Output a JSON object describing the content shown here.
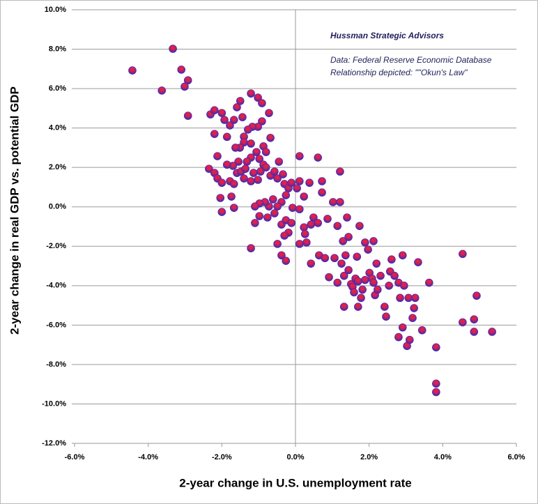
{
  "chart_data": {
    "type": "scatter",
    "x_label": "2-year change in U.S. unemployment rate",
    "y_label": "2-year change in real GDP vs. potential GDP",
    "annotations": [
      "Hussman Strategic Advisors",
      "Data: Federal Reserve Economic Database",
      "Relationship depicted: \"\"Okun's Law\""
    ],
    "color": "#3b2ab8",
    "highlight_color": "#e0204a",
    "grid": true,
    "xlim": [
      -6,
      6
    ],
    "ylim": [
      -12,
      10
    ],
    "xticks": [
      {
        "value": -6,
        "label": "-6.0%"
      },
      {
        "value": -4,
        "label": "-4.0%"
      },
      {
        "value": -2,
        "label": "-2.0%"
      },
      {
        "value": 0,
        "label": "0.0%"
      },
      {
        "value": 2,
        "label": "2.0%"
      },
      {
        "value": 4,
        "label": "4.0%"
      },
      {
        "value": 6,
        "label": "6.0%"
      }
    ],
    "yticks": [
      {
        "value": 10,
        "label": "10.0%"
      },
      {
        "value": 8,
        "label": "8.0%"
      },
      {
        "value": 6,
        "label": "6.0%"
      },
      {
        "value": 4,
        "label": "4.0%"
      },
      {
        "value": 2,
        "label": "2.0%"
      },
      {
        "value": 0,
        "label": "0.0%"
      },
      {
        "value": -2,
        "label": "-2.0%"
      },
      {
        "value": -4,
        "label": "-4.0%"
      },
      {
        "value": -6,
        "label": "-6.0%"
      },
      {
        "value": -8,
        "label": "-8.0%"
      },
      {
        "value": -10,
        "label": "-10.0%"
      },
      {
        "value": -12,
        "label": "-12.0%"
      }
    ],
    "x": [
      -4.43,
      -3.33,
      -3.63,
      -3.1,
      -3.01,
      -2.92,
      -2.92,
      -2.31,
      -2.2,
      -2.2,
      -2.0,
      -1.93,
      -1.86,
      -1.78,
      -1.67,
      -1.59,
      -1.5,
      -1.44,
      -1.21,
      -1.02,
      -0.91,
      -0.72,
      -0.91,
      -1.02,
      -1.17,
      -1.29,
      -1.4,
      -0.68,
      -0.87,
      -0.8,
      -0.45,
      -1.4,
      -1.51,
      -1.63,
      -1.21,
      -1.06,
      -0.98,
      -0.87,
      -1.21,
      -1.32,
      -1.55,
      -1.7,
      -1.86,
      -2.12,
      -2.35,
      -2.2,
      -2.12,
      -2.0,
      -2.04,
      -2.0,
      -1.74,
      -1.67,
      -1.78,
      -1.67,
      -1.59,
      -1.48,
      -1.4,
      -1.36,
      -1.21,
      -1.14,
      -1.02,
      -0.95,
      -0.8,
      -0.68,
      -0.57,
      -0.49,
      -0.34,
      -0.3,
      -0.19,
      -0.11,
      -0.26,
      -0.38,
      -0.49,
      -0.61,
      -0.72,
      -0.83,
      -0.98,
      -1.1,
      -1.1,
      -0.98,
      -0.76,
      -0.57,
      -0.38,
      -0.26,
      -0.11,
      -0.19,
      -0.3,
      -0.49,
      -1.21,
      -0.38,
      -0.26,
      -0.08,
      0.04,
      0.11,
      0.11,
      0.11,
      0.23,
      0.23,
      0.26,
      0.3,
      0.11,
      0.42,
      0.38,
      0.42,
      0.49,
      0.61,
      0.61,
      0.64,
      0.72,
      0.72,
      0.8,
      0.87,
      0.91,
      1.02,
      1.06,
      1.14,
      1.14,
      1.21,
      1.21,
      1.25,
      1.29,
      1.32,
      1.32,
      1.36,
      1.4,
      1.44,
      1.44,
      1.51,
      1.55,
      1.59,
      1.63,
      1.67,
      1.7,
      1.7,
      1.74,
      1.78,
      1.82,
      1.89,
      1.89,
      1.97,
      2.01,
      2.08,
      2.12,
      2.12,
      2.16,
      2.2,
      2.23,
      2.31,
      2.42,
      2.46,
      2.54,
      2.57,
      2.61,
      2.69,
      2.8,
      2.8,
      2.84,
      2.91,
      2.91,
      2.95,
      3.03,
      3.07,
      3.1,
      3.18,
      3.22,
      3.25,
      3.33,
      3.44,
      3.63,
      3.82,
      3.82,
      3.82,
      4.54,
      4.54,
      4.85,
      4.85,
      4.92,
      5.34
    ],
    "values": [
      6.92,
      8.02,
      5.9,
      6.96,
      6.1,
      6.42,
      4.62,
      4.69,
      4.9,
      3.7,
      4.76,
      4.41,
      3.55,
      4.13,
      4.41,
      5.05,
      5.37,
      4.55,
      5.75,
      5.54,
      5.26,
      4.76,
      4.34,
      4.06,
      4.06,
      3.92,
      3.56,
      3.5,
      3.07,
      2.78,
      2.29,
      3.27,
      3.0,
      3.0,
      3.21,
      2.78,
      2.43,
      2.14,
      2.5,
      2.29,
      2.29,
      2.08,
      2.14,
      2.57,
      1.93,
      1.72,
      1.44,
      1.22,
      0.45,
      -0.26,
      0.52,
      -0.05,
      1.3,
      1.16,
      1.72,
      1.79,
      1.44,
      1.93,
      1.3,
      1.72,
      1.37,
      1.79,
      2.0,
      1.58,
      1.79,
      1.44,
      1.65,
      1.16,
      0.94,
      1.22,
      0.59,
      0.24,
      0.02,
      0.38,
      0.02,
      0.24,
      0.17,
      0.02,
      -0.82,
      -0.47,
      -0.54,
      -0.33,
      -0.9,
      -0.68,
      -0.82,
      -1.31,
      -1.46,
      -1.88,
      -2.1,
      -2.46,
      -2.74,
      -0.05,
      0.94,
      1.3,
      2.57,
      -0.12,
      0.52,
      -1.04,
      -1.38,
      -1.81,
      -1.88,
      -0.9,
      1.22,
      -2.88,
      -0.54,
      2.5,
      -0.82,
      -2.46,
      1.3,
      0.73,
      -2.6,
      -0.61,
      -3.57,
      0.24,
      -2.6,
      -0.97,
      -3.85,
      1.79,
      0.24,
      -2.88,
      -1.74,
      -3.5,
      -5.07,
      -2.46,
      -0.54,
      -3.21,
      -1.53,
      -3.92,
      -4.06,
      -4.34,
      -3.64,
      -2.53,
      -3.78,
      -5.07,
      -0.97,
      -4.62,
      -4.2,
      -3.71,
      -1.81,
      -2.17,
      -3.35,
      -3.64,
      -3.85,
      -1.74,
      -4.48,
      -2.88,
      -4.2,
      -3.5,
      -5.07,
      -5.57,
      -4.0,
      -3.28,
      -2.67,
      -3.5,
      -3.85,
      -6.61,
      -4.62,
      -2.46,
      -6.12,
      -4.0,
      -7.06,
      -4.62,
      -6.75,
      -5.64,
      -5.14,
      -4.62,
      -2.81,
      -6.26,
      -3.85,
      -7.13,
      -8.97,
      -9.4,
      -2.39,
      -5.86,
      -5.71,
      -6.34,
      -4.51,
      -6.34
    ]
  }
}
